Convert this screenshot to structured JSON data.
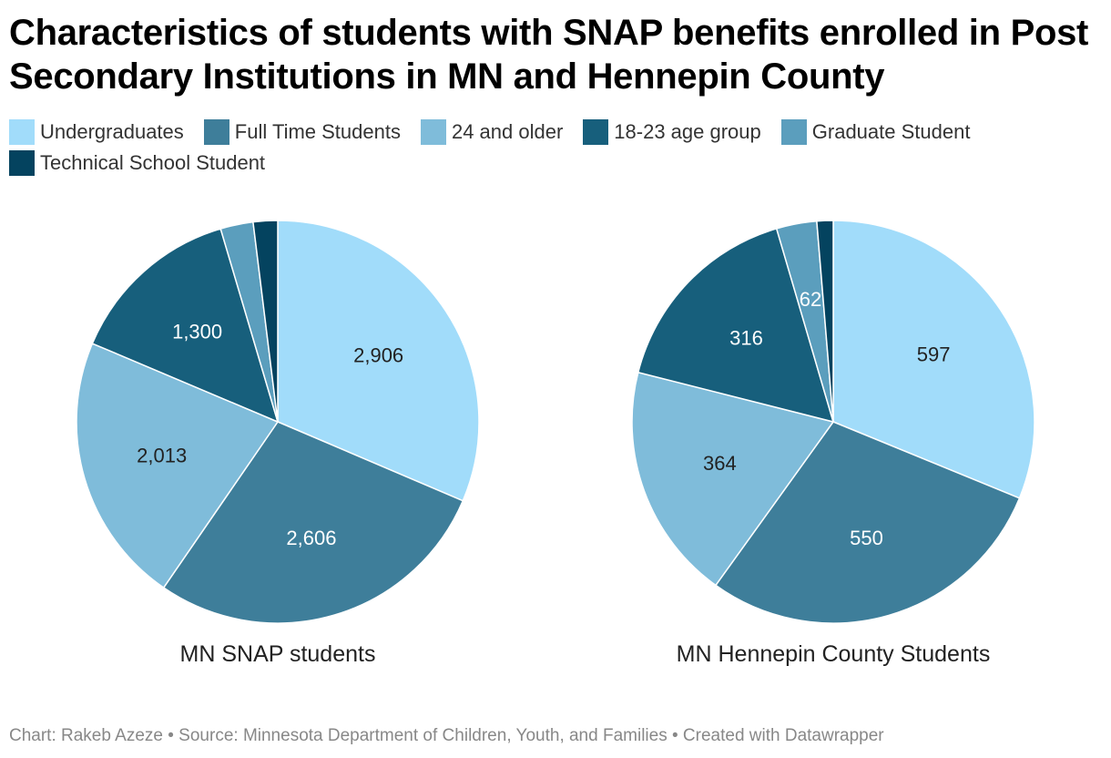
{
  "title": "Characteristics of students with SNAP benefits enrolled in Post Secondary Institutions in MN and Hennepin County",
  "footer": "Chart: Rakeb Azeze • Source: Minnesota Department of Children, Youth, and Families • Created with Datawrapper",
  "legend": [
    {
      "label": "Undergraduates",
      "color": "#a1dcfa"
    },
    {
      "label": "Full Time Students",
      "color": "#3e7e9a"
    },
    {
      "label": "24 and older",
      "color": "#7fbcda"
    },
    {
      "label": "18-23 age group",
      "color": "#175f7c"
    },
    {
      "label": "Graduate Student",
      "color": "#5b9ebd"
    },
    {
      "label": "Technical School Student",
      "color": "#04435f"
    }
  ],
  "chart_data": [
    {
      "type": "pie",
      "title": "MN SNAP students",
      "categories": [
        "Undergraduates",
        "Full Time Students",
        "24 and older",
        "18-23 age group",
        "Graduate Student",
        "Technical School Student"
      ],
      "values": [
        2906,
        2606,
        2013,
        1300,
        243,
        181
      ],
      "labels": [
        "2,906",
        "2,606",
        "2,013",
        "1,300",
        "",
        ""
      ],
      "label_colors": [
        "#222222",
        "#ffffff",
        "#222222",
        "#ffffff",
        "#ffffff",
        "#ffffff"
      ]
    },
    {
      "type": "pie",
      "title": "MN Hennepin County Students",
      "categories": [
        "Undergraduates",
        "Full Time Students",
        "24 and older",
        "18-23 age group",
        "Graduate Student",
        "Technical School Student"
      ],
      "values": [
        597,
        550,
        364,
        316,
        62,
        25
      ],
      "labels": [
        "597",
        "550",
        "364",
        "316",
        "62",
        ""
      ],
      "label_colors": [
        "#222222",
        "#ffffff",
        "#222222",
        "#ffffff",
        "#ffffff",
        "#ffffff"
      ]
    }
  ]
}
